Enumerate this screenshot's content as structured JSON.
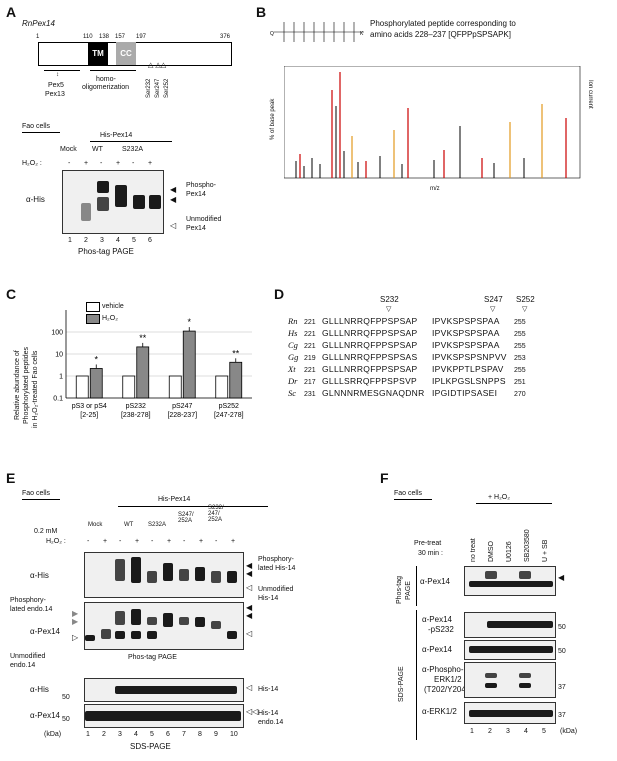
{
  "panelA": {
    "letter": "A",
    "protein": "RnPex14",
    "positions": [
      "1",
      "110",
      "138",
      "157",
      "197",
      "376"
    ],
    "tm": "TM",
    "cc": "CC",
    "pex5": "Pex5",
    "pex13": "Pex13",
    "homo": "homo-",
    "oligo": "oligomerization",
    "sites": [
      "Ser232",
      "Ser247",
      "Ser252"
    ],
    "cells": "Fao cells",
    "construct": "His-Pex14",
    "mock": "Mock",
    "wt": "WT",
    "mut": "S232A",
    "h2o2": "H₂O₂ :",
    "signs": [
      "-",
      "+",
      "-",
      "+",
      "-",
      "+"
    ],
    "antibody": "α-His",
    "phospho": "Phospho-",
    "phospho2": "Pex14",
    "unmod": "Unmodified",
    "unmod2": "Pex14",
    "lanes": [
      "1",
      "2",
      "3",
      "4",
      "5",
      "6"
    ],
    "gel": "Phos-tag PAGE"
  },
  "panelB": {
    "letter": "B",
    "title1": "Phosphorylated peptide corresponding to",
    "title2": "amino acids 228–237 [QFPPpSPSAPK]",
    "ylabel": "% of base peak",
    "y2label": "Ion current",
    "xlabel": "m/z"
  },
  "panelC": {
    "letter": "C",
    "legend": [
      "vehicle",
      "H₂O₂"
    ],
    "ylabel1": "Relative abundance of",
    "ylabel2": "Phosphorylated peptides",
    "ylabel3": "in H₂O₂-treated Fao cells",
    "yticks": [
      "100",
      "10",
      "1",
      "0.1"
    ],
    "groups": [
      {
        "name": "pS3 or pS4",
        "range": "[2-25]",
        "vehicle": 1,
        "h2o2": 2.2,
        "sig": "*"
      },
      {
        "name": "pS232",
        "range": "[238-278]",
        "vehicle": 1,
        "h2o2": 21,
        "sig": "**"
      },
      {
        "name": "pS247",
        "range": "[228-237]",
        "vehicle": 1,
        "h2o2": 110,
        "sig": "*"
      },
      {
        "name": "pS252",
        "range": "[247-278]",
        "vehicle": 1,
        "h2o2": 4.2,
        "sig": "**"
      }
    ]
  },
  "panelD": {
    "letter": "D",
    "sites": [
      "S232",
      "S247",
      "S252"
    ],
    "rows": [
      {
        "sp": "Rn",
        "start": "221",
        "seq1": "GLLLNRRQFPPSPSAP",
        "seq2": "IPVKSPSPSPAA",
        "end": "255"
      },
      {
        "sp": "Hs",
        "start": "221",
        "seq1": "GLLLNRRQFPPSPSAP",
        "seq2": "IPVKSPSPSPAA",
        "end": "255"
      },
      {
        "sp": "Cg",
        "start": "221",
        "seq1": "GLLLNRRQFPPSPSAP",
        "seq2": "IPVKSPSPSPAA",
        "end": "255"
      },
      {
        "sp": "Gg",
        "start": "219",
        "seq1": "GLLLNRRQFPPSPSAS",
        "seq2": "IPVKSPSPSNPVV",
        "end": "253"
      },
      {
        "sp": "Xt",
        "start": "221",
        "seq1": "GLLLNRRQFPPSPSAP",
        "seq2": "IPVKPPTLPSPAV",
        "end": "255"
      },
      {
        "sp": "Dr",
        "start": "217",
        "seq1": "GLLLSRRQFPPSPSVP",
        "seq2": "IPLKPGSLSNPPS",
        "end": "251"
      },
      {
        "sp": "Sc",
        "start": "231",
        "seq1": "GLNNNRMESGNAQDNR",
        "seq2": "IPGIDTIPSASEI",
        "end": "270"
      }
    ]
  },
  "panelE": {
    "letter": "E",
    "cells": "Fao cells",
    "construct": "His-Pex14",
    "conc": "0.2 mM",
    "h2o2": "H₂O₂ :",
    "groups": [
      "Mock",
      "WT",
      "S232A",
      "S247/\n252A",
      "S232/\n247/\n252A"
    ],
    "signs": [
      "-",
      "+",
      "-",
      "+",
      "-",
      "+",
      "-",
      "+",
      "-",
      "+"
    ],
    "his": "α-His",
    "pex14": "α-Pex14",
    "phosHis1": "Phosphory-",
    "phosHis2": "lated His-14",
    "unmodHis1": "Unmodified",
    "unmodHis2": "His-14",
    "phosEndo1": "Phosphory-",
    "phosEndo2": "lated endo.14",
    "unmodEndo1": "Unmodified",
    "unmodEndo2": "endo.14",
    "phosTag": "Phos-tag PAGE",
    "his14": "His-14",
    "endo14": "endo.14",
    "mw": "50",
    "kda": "(kDa)",
    "lanes": [
      "1",
      "2",
      "3",
      "4",
      "5",
      "6",
      "7",
      "8",
      "9",
      "10"
    ],
    "sds": "SDS-PAGE"
  },
  "panelF": {
    "letter": "F",
    "cells": "Fao cells",
    "h2o2": "+ H₂O₂",
    "pretreat1": "Pre-treat",
    "pretreat2": "30 min :",
    "conditions": [
      "no treat",
      "DMSO",
      "U0126",
      "SB203580",
      "U + SB"
    ],
    "phosTagPage1": "Phos-tag",
    "phosTagPage2": "PAGE",
    "sdsPage": "SDS-PAGE",
    "blots": [
      "α-Pex14",
      "α-Pex14",
      "α-Pex14",
      "α-Phospho-",
      "α-ERK1/2"
    ],
    "pS232": "-pS232",
    "erkSub1": "ERK1/2",
    "erkSub2": "(T202/Y204)",
    "mw": [
      "50",
      "50",
      "37",
      "37"
    ],
    "lanes": [
      "1",
      "2",
      "3",
      "4",
      "5"
    ],
    "kda": "(kDa)"
  }
}
